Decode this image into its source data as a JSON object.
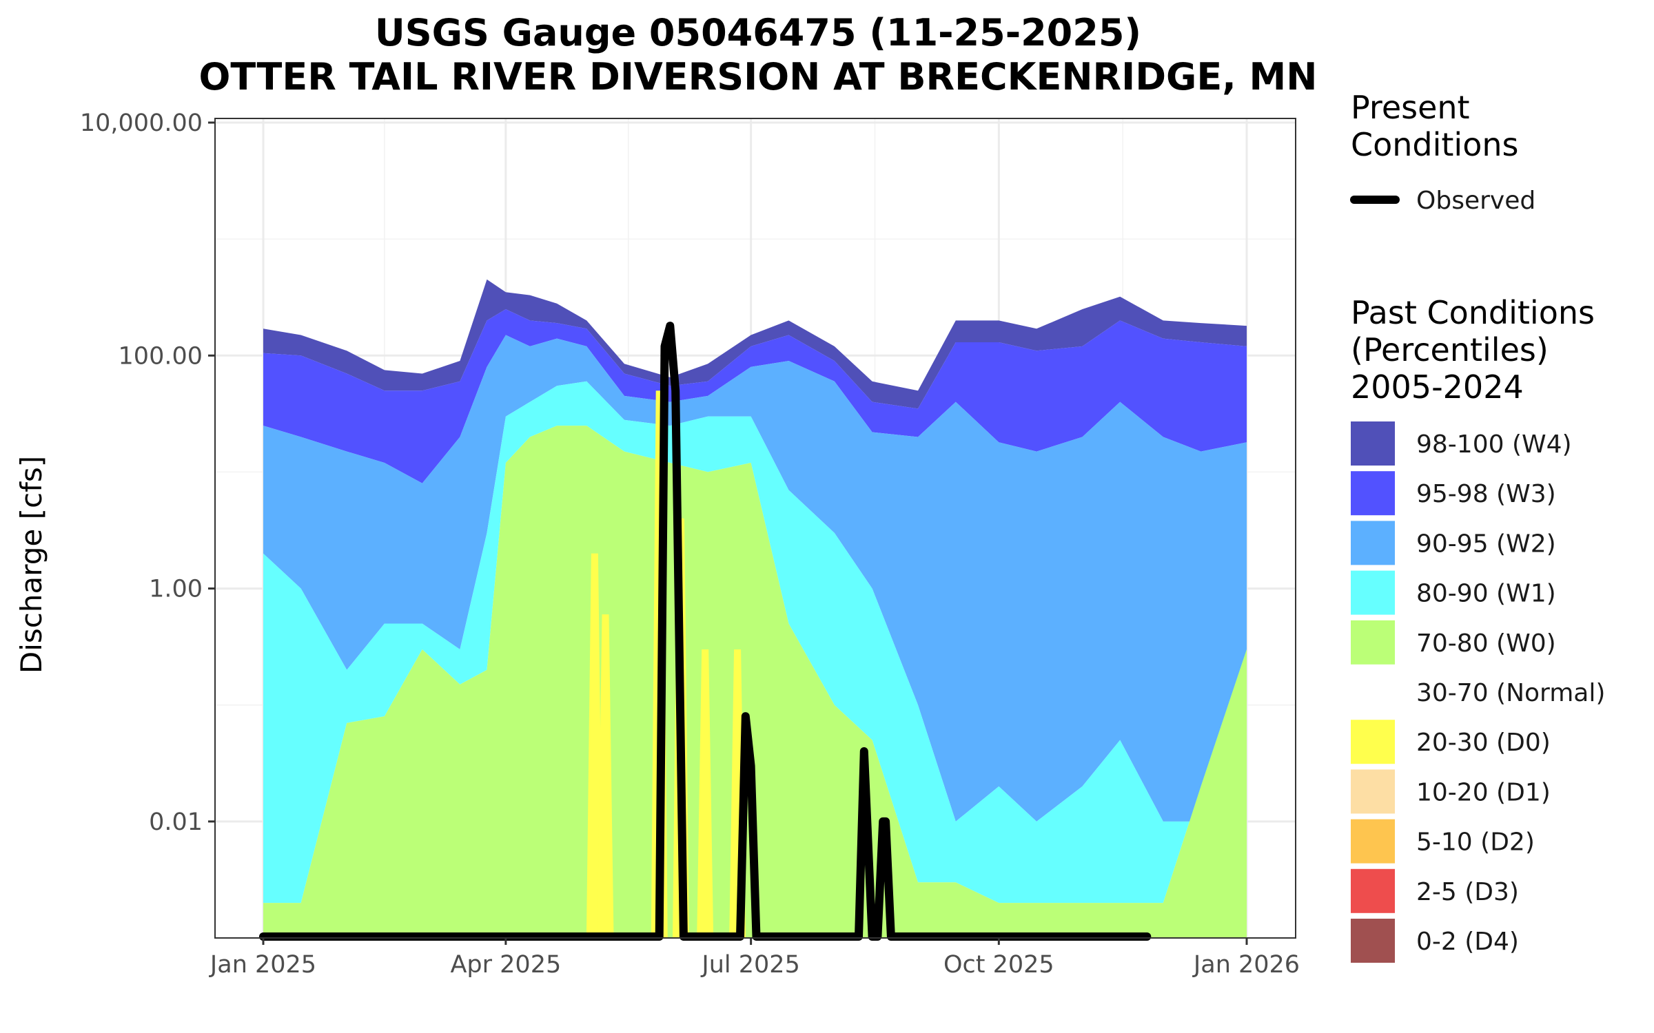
{
  "title_line1": "USGS Gauge 05046475 (11-25-2025)",
  "title_line2": "OTTER TAIL RIVER DIVERSION AT BRECKENRIDGE, MN",
  "chart_data": {
    "type": "area",
    "ylabel": "Discharge [cfs]",
    "xlabel": "",
    "y_scale": "log10",
    "ylim": [
      0.001,
      10000
    ],
    "y_ticks": [
      {
        "value": 10000,
        "label": "10,000.00"
      },
      {
        "value": 100,
        "label": "100.00"
      },
      {
        "value": 1,
        "label": "1.00"
      },
      {
        "value": 0.01,
        "label": "0.01"
      }
    ],
    "x_range": [
      "2025-01-01",
      "2026-01-01"
    ],
    "x_ticks": [
      {
        "date": "2025-01-01",
        "label": "Jan 2025"
      },
      {
        "date": "2025-04-01",
        "label": "Apr 2025"
      },
      {
        "date": "2025-07-01",
        "label": "Jul 2025"
      },
      {
        "date": "2025-10-01",
        "label": "Oct 2025"
      },
      {
        "date": "2026-01-01",
        "label": "Jan 2026"
      }
    ],
    "grid": true,
    "legend_position": "right",
    "present_legend_title": "Present Conditions",
    "past_legend_title": "Past Conditions (Percentiles) 2005-2024",
    "percentile_classes": [
      {
        "label": "98-100 (W4)",
        "color": "#5050b8"
      },
      {
        "label": "95-98 (W3)",
        "color": "#5252ff"
      },
      {
        "label": "90-95 (W2)",
        "color": "#5cb0ff"
      },
      {
        "label": "80-90 (W1)",
        "color": "#66ffff"
      },
      {
        "label": "70-80 (W0)",
        "color": "#bbff77"
      },
      {
        "label": "30-70 (Normal)",
        "color": "#ffffff"
      },
      {
        "label": "20-30 (D0)",
        "color": "#ffff4d"
      },
      {
        "label": "10-20 (D1)",
        "color": "#fddea4"
      },
      {
        "label": "5-10 (D2)",
        "color": "#fec54f"
      },
      {
        "label": "2-5 (D3)",
        "color": "#ee4d4d"
      },
      {
        "label": "0-2 (D4)",
        "color": "#a05050"
      }
    ],
    "percentile_bands": {
      "x": [
        "2025-01-01",
        "2025-01-15",
        "2025-02-01",
        "2025-02-15",
        "2025-03-01",
        "2025-03-15",
        "2025-03-25",
        "2025-04-01",
        "2025-04-10",
        "2025-04-20",
        "2025-05-01",
        "2025-05-15",
        "2025-06-01",
        "2025-06-15",
        "2025-07-01",
        "2025-07-15",
        "2025-08-01",
        "2025-08-15",
        "2025-09-01",
        "2025-09-15",
        "2025-10-01",
        "2025-10-15",
        "2025-11-01",
        "2025-11-15",
        "2025-12-01",
        "2025-12-15",
        "2026-01-01"
      ],
      "p98": [
        170,
        150,
        110,
        75,
        70,
        90,
        450,
        350,
        330,
        280,
        200,
        85,
        65,
        85,
        150,
        200,
        120,
        60,
        50,
        200,
        200,
        170,
        250,
        320,
        200,
        190,
        180
      ],
      "p95": [
        105,
        100,
        70,
        50,
        50,
        60,
        200,
        250,
        200,
        190,
        170,
        70,
        55,
        60,
        120,
        150,
        90,
        40,
        35,
        130,
        130,
        110,
        120,
        200,
        140,
        130,
        120
      ],
      "p90": [
        25,
        20,
        15,
        12,
        8,
        20,
        80,
        150,
        120,
        140,
        120,
        45,
        40,
        45,
        80,
        90,
        60,
        22,
        20,
        40,
        18,
        15,
        20,
        40,
        20,
        15,
        18
      ],
      "p80": [
        2,
        1,
        0.2,
        0.5,
        0.5,
        0.3,
        3,
        30,
        40,
        55,
        60,
        28,
        25,
        30,
        30,
        7,
        3,
        1,
        0.1,
        0.01,
        0.02,
        0.01,
        0.02,
        0.05,
        0.01,
        0.01,
        0.01
      ],
      "p70": [
        0.002,
        0.002,
        0.07,
        0.08,
        0.3,
        0.15,
        0.2,
        12,
        20,
        25,
        25,
        15,
        12,
        10,
        12,
        0.5,
        0.1,
        0.05,
        0.003,
        0.003,
        0.002,
        0.002,
        0.002,
        0.002,
        0.002,
        0.02,
        0.3
      ],
      "p30": [
        0.001,
        0.001,
        0.001,
        0.001,
        0.001,
        0.001,
        0.001,
        0.001,
        0.001,
        0.001,
        0.001,
        0.001,
        0.001,
        0.001,
        0.001,
        0.001,
        0.001,
        0.001,
        0.001,
        0.001,
        0.001,
        0.001,
        0.001,
        0.001,
        0.001,
        0.001,
        0.001
      ]
    },
    "d0_spikes": [
      {
        "date": "2025-05-04",
        "value": 2
      },
      {
        "date": "2025-05-08",
        "value": 0.6
      },
      {
        "date": "2025-05-28",
        "value": 50
      },
      {
        "date": "2025-06-05",
        "value": 4
      },
      {
        "date": "2025-06-14",
        "value": 0.3
      },
      {
        "date": "2025-06-26",
        "value": 0.3
      }
    ],
    "series": [
      {
        "name": "Observed",
        "color": "#000000",
        "x": [
          "2025-01-01",
          "2025-05-28",
          "2025-05-30",
          "2025-06-01",
          "2025-06-03",
          "2025-06-06",
          "2025-06-27",
          "2025-06-29",
          "2025-07-01",
          "2025-07-03",
          "2025-08-10",
          "2025-08-12",
          "2025-08-15",
          "2025-08-17",
          "2025-08-19",
          "2025-08-20",
          "2025-08-22",
          "2025-11-25"
        ],
        "y": [
          0.001,
          0.001,
          120,
          180,
          50,
          0.001,
          0.001,
          0.08,
          0.03,
          0.001,
          0.001,
          0.04,
          0.001,
          0.001,
          0.01,
          0.01,
          0.001,
          0.001
        ]
      }
    ]
  }
}
